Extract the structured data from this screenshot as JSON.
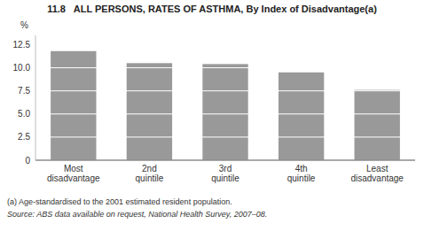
{
  "chart_data": {
    "type": "bar",
    "title": "11.8   ALL PERSONS, RATES OF ASTHMA, By Index of Disadvantage(a)",
    "ylabel": "%",
    "categories": [
      "Most\ndisadvantage",
      "2nd\nquintile",
      "3rd\nquintile",
      "4th\nquintile",
      "Least\ndisadvantage"
    ],
    "values": [
      11.8,
      10.5,
      10.4,
      9.5,
      7.6
    ],
    "color": "#999999",
    "ylim": [
      0,
      13.5
    ],
    "yticks": [
      0,
      2.5,
      {
        "value": 5.0,
        "label": "5.0"
      },
      7.5,
      {
        "value": 10.0,
        "label": "10.0"
      },
      12.5
    ],
    "grid": true,
    "footnotes": [
      "(a) Age-standardised to the 2001 estimated resident population.",
      "Source: ABS data available on request, National Health Survey, 2007–08."
    ]
  }
}
